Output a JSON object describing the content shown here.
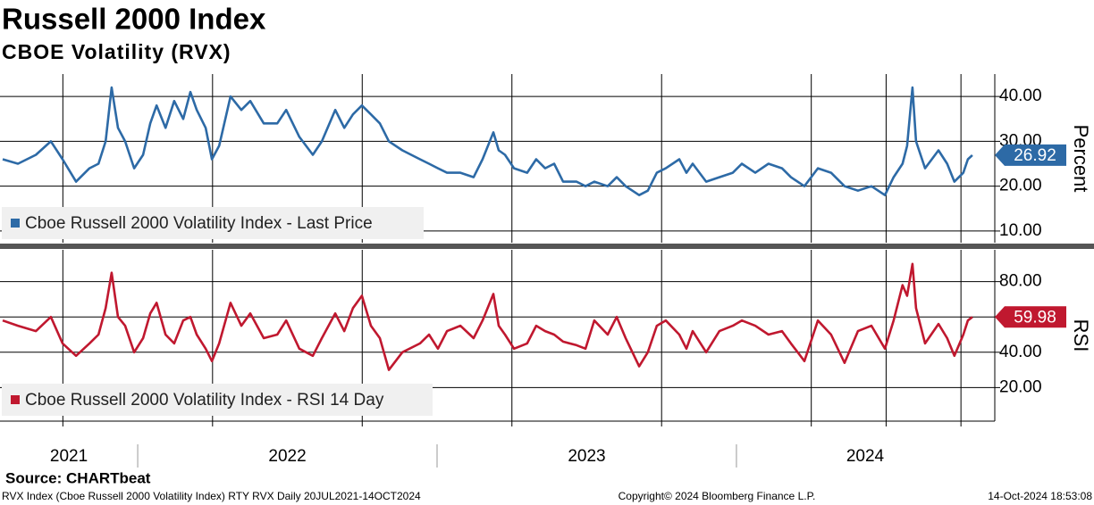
{
  "title": "Russell 2000 Index",
  "subtitle": "CBOE Volatility (RVX)",
  "source": "Source: CHARTbeat",
  "footer": {
    "left": "RVX Index (Cboe Russell 2000 Volatility Index) RTY RVX  Daily 20JUL2021-14OCT2024",
    "center": "Copyright© 2024 Bloomberg Finance L.P.",
    "right": "14-Oct-2024 18:53:08"
  },
  "chart_data": [
    {
      "type": "line",
      "ylabel": "Percent",
      "grid": true,
      "legend": "lower-left",
      "xlim": [
        2021.54,
        2024.863
      ],
      "xgrid": [
        2021.75,
        2022.25,
        2022.75,
        2023.25,
        2023.75,
        2024.25,
        2024.5,
        2024.75
      ],
      "ylim": [
        7.4,
        45
      ],
      "yticks": [
        {
          "value": 10,
          "label": "10.00"
        },
        {
          "value": 20,
          "label": "20.00"
        },
        {
          "value": 30,
          "label": "30.00"
        },
        {
          "value": 40,
          "label": "40.00"
        }
      ],
      "x": [
        2021.549,
        2021.6,
        2021.66,
        2021.71,
        2021.749,
        2021.794,
        2021.839,
        2021.869,
        2021.893,
        2021.913,
        2021.934,
        2021.958,
        2021.988,
        2022.018,
        2022.042,
        2022.063,
        2022.093,
        2022.122,
        2022.152,
        2022.176,
        2022.197,
        2022.227,
        2022.248,
        2022.272,
        2022.31,
        2022.346,
        2022.376,
        2022.421,
        2022.466,
        2022.496,
        2022.54,
        2022.585,
        2022.615,
        2022.66,
        2022.69,
        2022.719,
        2022.749,
        2022.779,
        2022.809,
        2022.839,
        2022.884,
        2022.943,
        2022.973,
        2023.003,
        2023.033,
        2023.078,
        2023.122,
        2023.152,
        2023.188,
        2023.206,
        2023.227,
        2023.257,
        2023.301,
        2023.331,
        2023.361,
        2023.391,
        2023.421,
        2023.466,
        2023.496,
        2023.525,
        2023.57,
        2023.6,
        2023.63,
        2023.675,
        2023.704,
        2023.734,
        2023.764,
        2023.809,
        2023.833,
        2023.854,
        2023.899,
        2023.943,
        2023.988,
        2024.018,
        2024.063,
        2024.107,
        2024.152,
        2024.182,
        2024.227,
        2024.272,
        2024.316,
        2024.361,
        2024.406,
        2024.451,
        2024.496,
        2024.525,
        2024.555,
        2024.57,
        2024.588,
        2024.6,
        2024.63,
        2024.675,
        2024.704,
        2024.728,
        2024.758,
        2024.773,
        2024.788
      ],
      "series": [
        {
          "name": "Cboe Russell 2000 Volatility Index - Last Price",
          "color": "#2d6aa6",
          "values": [
            26,
            25,
            27,
            30,
            26,
            21,
            24,
            25,
            30,
            42,
            33,
            30,
            24,
            27,
            34,
            38,
            33,
            39,
            35,
            41,
            37,
            33,
            26,
            29,
            40,
            37,
            39,
            34,
            34,
            37,
            31,
            27,
            30,
            37,
            33,
            36,
            38,
            36,
            34,
            30,
            28,
            26,
            25,
            24,
            23,
            23,
            22,
            26,
            32,
            28,
            27,
            24,
            23,
            26,
            24,
            25,
            21,
            21,
            20,
            21,
            20,
            22,
            20,
            18,
            19,
            23,
            24,
            26,
            23,
            25,
            21,
            22,
            23,
            25,
            23,
            25,
            24,
            22,
            20,
            24,
            23,
            20,
            19,
            20,
            18,
            22,
            25,
            29,
            42,
            30,
            24,
            28,
            25,
            21,
            23,
            26,
            26.92
          ]
        }
      ]
    },
    {
      "type": "line",
      "ylabel": "RSI",
      "grid": true,
      "legend": "lower-left",
      "xlim": [
        2021.54,
        2024.863
      ],
      "xgrid": [
        2021.75,
        2022.25,
        2022.75,
        2023.25,
        2023.75,
        2024.25,
        2024.5,
        2024.75
      ],
      "xticks": [
        {
          "value": 2021.77,
          "label": "2021"
        },
        {
          "value": 2022.5,
          "label": "2022"
        },
        {
          "value": 2023.5,
          "label": "2023"
        },
        {
          "value": 2024.43,
          "label": "2024"
        }
      ],
      "year_separators": [
        2022,
        2023,
        2024
      ],
      "ylim": [
        1,
        98
      ],
      "yticks": [
        {
          "value": 20,
          "label": "20.00"
        },
        {
          "value": 40,
          "label": "40.00"
        },
        {
          "value": 60,
          "label": "60.00"
        },
        {
          "value": 80,
          "label": "80.00"
        }
      ],
      "x": [
        2021.549,
        2021.6,
        2021.66,
        2021.71,
        2021.749,
        2021.794,
        2021.839,
        2021.869,
        2021.893,
        2021.913,
        2021.934,
        2021.958,
        2021.988,
        2022.018,
        2022.042,
        2022.063,
        2022.093,
        2022.122,
        2022.152,
        2022.176,
        2022.197,
        2022.227,
        2022.248,
        2022.272,
        2022.31,
        2022.346,
        2022.376,
        2022.421,
        2022.466,
        2022.496,
        2022.54,
        2022.585,
        2022.615,
        2022.66,
        2022.69,
        2022.719,
        2022.749,
        2022.779,
        2022.809,
        2022.839,
        2022.884,
        2022.943,
        2022.973,
        2023.003,
        2023.033,
        2023.078,
        2023.122,
        2023.152,
        2023.188,
        2023.206,
        2023.227,
        2023.257,
        2023.301,
        2023.331,
        2023.361,
        2023.391,
        2023.421,
        2023.466,
        2023.496,
        2023.525,
        2023.57,
        2023.6,
        2023.63,
        2023.675,
        2023.704,
        2023.734,
        2023.764,
        2023.809,
        2023.833,
        2023.854,
        2023.899,
        2023.943,
        2023.988,
        2024.018,
        2024.063,
        2024.107,
        2024.152,
        2024.182,
        2024.227,
        2024.272,
        2024.316,
        2024.361,
        2024.406,
        2024.451,
        2024.496,
        2024.525,
        2024.555,
        2024.57,
        2024.588,
        2024.6,
        2024.63,
        2024.675,
        2024.704,
        2024.728,
        2024.758,
        2024.773,
        2024.788
      ],
      "series": [
        {
          "name": "Cboe Russell 2000 Volatility Index - RSI 14 Day",
          "color": "#c0182f",
          "values": [
            58,
            55,
            52,
            60,
            45,
            38,
            45,
            50,
            65,
            85,
            60,
            55,
            40,
            48,
            62,
            68,
            50,
            45,
            58,
            60,
            50,
            42,
            35,
            45,
            68,
            55,
            62,
            48,
            50,
            58,
            42,
            38,
            48,
            62,
            52,
            65,
            72,
            55,
            48,
            30,
            40,
            45,
            50,
            42,
            52,
            55,
            48,
            58,
            73,
            55,
            50,
            42,
            45,
            55,
            52,
            50,
            46,
            44,
            42,
            58,
            50,
            60,
            48,
            32,
            40,
            55,
            58,
            50,
            42,
            52,
            40,
            52,
            55,
            58,
            55,
            50,
            52,
            45,
            35,
            58,
            50,
            34,
            52,
            55,
            42,
            58,
            78,
            72,
            90,
            65,
            45,
            56,
            48,
            38,
            50,
            58,
            59.98
          ]
        }
      ]
    }
  ]
}
